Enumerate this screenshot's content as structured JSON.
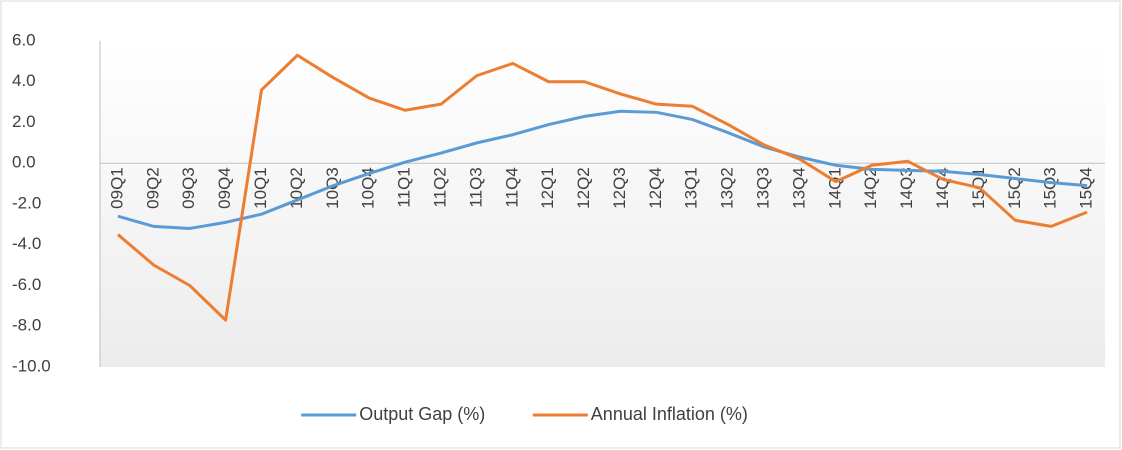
{
  "chart_data": {
    "type": "line",
    "categories": [
      "09Q1",
      "09Q2",
      "09Q3",
      "09Q4",
      "10Q1",
      "10Q2",
      "10Q3",
      "10Q4",
      "11Q1",
      "11Q2",
      "11Q3",
      "11Q4",
      "12Q1",
      "12Q2",
      "12Q3",
      "12Q4",
      "13Q1",
      "13Q2",
      "13Q3",
      "13Q4",
      "14Q1",
      "14Q2",
      "14Q3",
      "14Q4",
      "15Q1",
      "15Q2",
      "15Q3",
      "15Q4"
    ],
    "series": [
      {
        "name": "Output Gap (%)",
        "color": "#5b9bd5",
        "values": [
          -2.6,
          -3.1,
          -3.2,
          -2.9,
          -2.5,
          -1.8,
          -1.1,
          -0.5,
          0.05,
          0.5,
          1.0,
          1.4,
          1.9,
          2.3,
          2.55,
          2.5,
          2.15,
          1.5,
          0.8,
          0.3,
          -0.1,
          -0.3,
          -0.35,
          -0.4,
          -0.55,
          -0.75,
          -0.95,
          -1.1
        ]
      },
      {
        "name": "Annual Inflation (%)",
        "color": "#ed7d31",
        "values": [
          -3.5,
          -5.0,
          -6.0,
          -7.7,
          3.6,
          5.3,
          4.2,
          3.2,
          2.6,
          2.9,
          4.3,
          4.9,
          4.0,
          4.0,
          3.4,
          2.9,
          2.8,
          1.9,
          0.9,
          0.2,
          -0.9,
          -0.1,
          0.1,
          -0.8,
          -1.2,
          -2.8,
          -3.1,
          -2.4
        ]
      }
    ],
    "ylim": [
      -10,
      6
    ],
    "yticks": [
      {
        "value": 6,
        "label": "6.0"
      },
      {
        "value": 4,
        "label": "4.0"
      },
      {
        "value": 2,
        "label": "2.0"
      },
      {
        "value": 0,
        "label": "0.0"
      },
      {
        "value": -2,
        "label": "-2.0"
      },
      {
        "value": -4,
        "label": "-4.0"
      },
      {
        "value": -6,
        "label": "-6.0"
      },
      {
        "value": -8,
        "label": "-8.0"
      },
      {
        "value": -10,
        "label": "-10.0"
      }
    ],
    "grid": false,
    "legend": "bottom"
  }
}
